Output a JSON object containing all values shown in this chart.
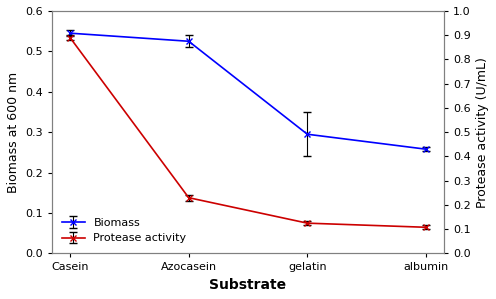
{
  "substrates": [
    "Casein",
    "Azocasein",
    "gelatin",
    "albumin"
  ],
  "biomass_values": [
    0.545,
    0.525,
    0.295,
    0.258
  ],
  "biomass_errors": [
    0.008,
    0.015,
    0.055,
    0.005
  ],
  "protease_values": [
    0.89,
    0.23,
    0.125,
    0.108
  ],
  "protease_errors": [
    0.01,
    0.012,
    0.007,
    0.008
  ],
  "biomass_color": "#0000FF",
  "protease_color": "#CC0000",
  "left_ylim": [
    0,
    0.6
  ],
  "right_ylim": [
    0,
    1.0
  ],
  "left_yticks": [
    0,
    0.1,
    0.2,
    0.3,
    0.4,
    0.5,
    0.6
  ],
  "right_yticks": [
    0,
    0.1,
    0.2,
    0.3,
    0.4,
    0.5,
    0.6,
    0.7,
    0.8,
    0.9,
    1.0
  ],
  "left_ylabel": "Biomass at 600 nm",
  "right_ylabel": "Protease activity (U/mL)",
  "xlabel": "Substrate",
  "legend_labels": [
    "Biomass",
    "Protease activity"
  ],
  "background_color": "#ffffff",
  "marker_style": "x"
}
